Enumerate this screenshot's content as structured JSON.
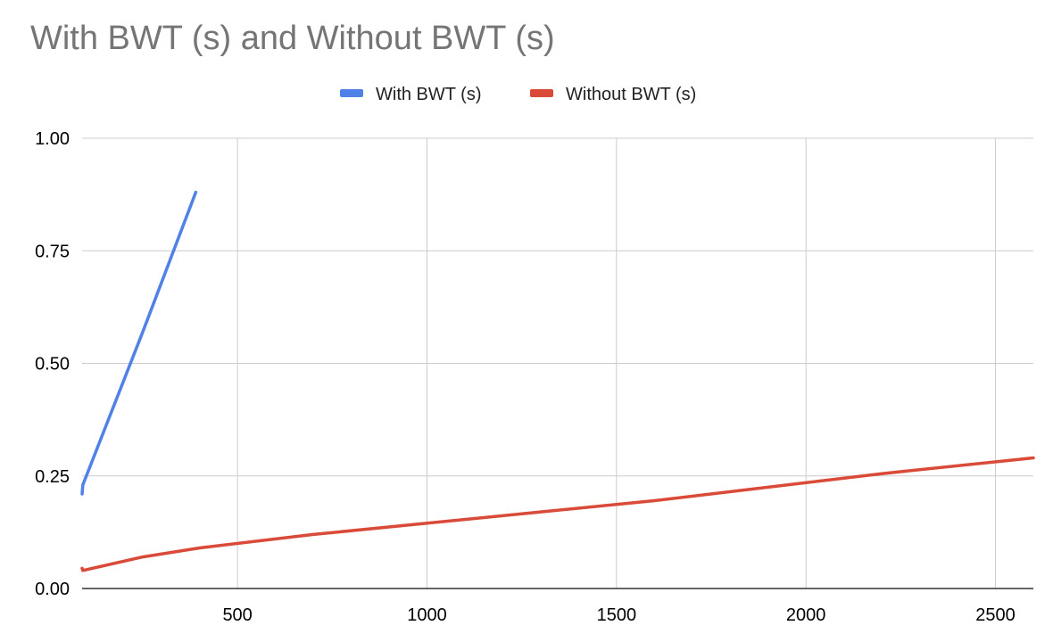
{
  "chart_data": {
    "type": "line",
    "title": "With BWT (s) and Without BWT (s)",
    "xlabel": "",
    "ylabel": "",
    "xlim": [
      90,
      2600
    ],
    "ylim": [
      0,
      1.0
    ],
    "x_ticks": [
      500,
      1000,
      1500,
      2000,
      2500
    ],
    "y_ticks": [
      0.0,
      0.25,
      0.5,
      0.75,
      1.0
    ],
    "y_tick_labels": [
      "0.00",
      "0.25",
      "0.50",
      "0.75",
      "1.00"
    ],
    "grid": true,
    "legend_position": "top-center",
    "series": [
      {
        "name": "With BWT (s)",
        "color": "#4f81e6",
        "x": [
          90,
          92,
          250,
          390
        ],
        "y": [
          0.21,
          0.23,
          0.57,
          0.88
        ]
      },
      {
        "name": "Without BWT (s)",
        "color": "#d94a38",
        "x": [
          90,
          92,
          250,
          400,
          700,
          1000,
          1300,
          1600,
          1900,
          2200,
          2600
        ],
        "y": [
          0.045,
          0.04,
          0.07,
          0.09,
          0.12,
          0.145,
          0.17,
          0.195,
          0.225,
          0.255,
          0.29
        ]
      }
    ]
  }
}
